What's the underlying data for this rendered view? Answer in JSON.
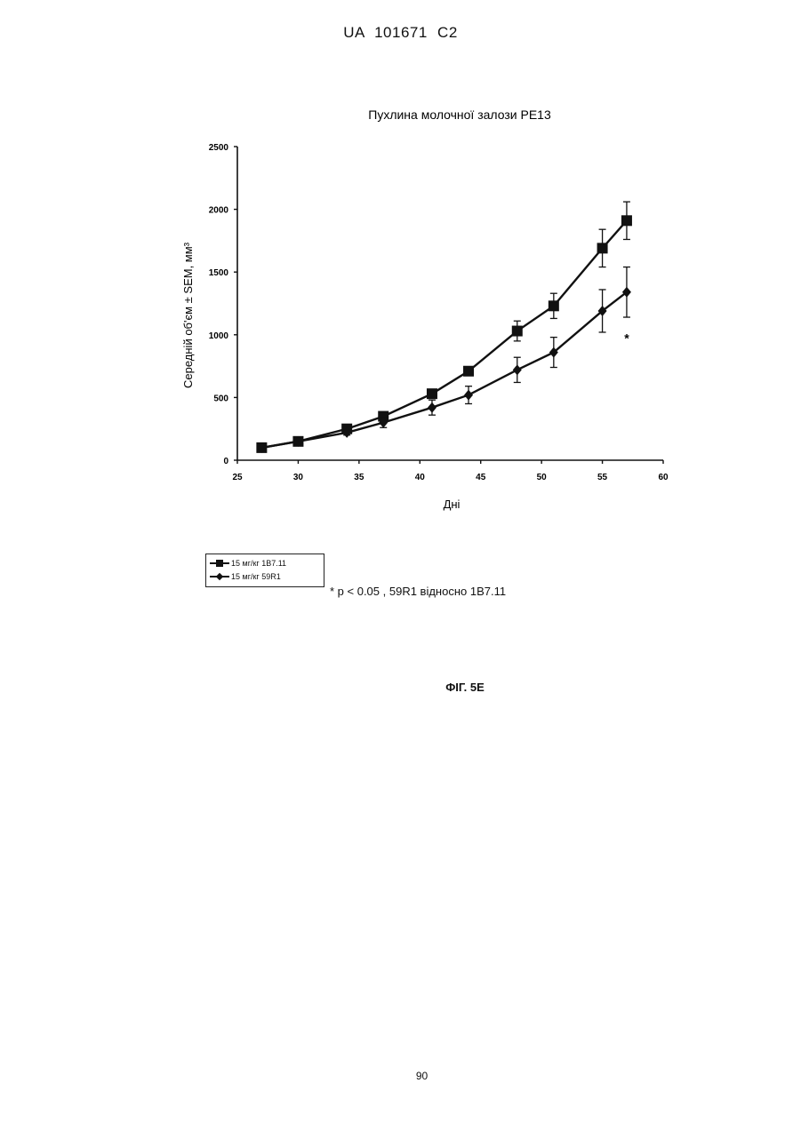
{
  "header": {
    "text": "UA   101671   C2"
  },
  "chart_data": {
    "type": "line",
    "title": "Пухлина молочної залози PE13",
    "xlabel": "Дні",
    "ylabel": "Середній об'єм ± SEM, мм³",
    "xlim": [
      25,
      60
    ],
    "ylim": [
      0,
      2500
    ],
    "xticks": [
      25,
      30,
      35,
      40,
      45,
      50,
      55,
      60
    ],
    "yticks": [
      0,
      500,
      1000,
      1500,
      2000,
      2500
    ],
    "ytick_labels": [
      "0",
      "500",
      "1000",
      "1500",
      "2000",
      "2500"
    ],
    "grid": false,
    "legend_position": "bottom-left, below chart",
    "series": [
      {
        "name": "15 мг/кг 1B7.11",
        "marker": "square",
        "x": [
          27,
          30,
          34,
          37,
          41,
          44,
          48,
          51,
          55,
          57
        ],
        "y": [
          100,
          150,
          250,
          350,
          530,
          710,
          1030,
          1230,
          1690,
          1910
        ],
        "error": [
          0,
          0,
          0,
          0,
          0,
          30,
          80,
          100,
          150,
          150
        ]
      },
      {
        "name": "15 мг/кг 59R1",
        "marker": "diamond",
        "x": [
          27,
          30,
          34,
          37,
          41,
          44,
          48,
          51,
          55,
          57
        ],
        "y": [
          100,
          150,
          220,
          300,
          420,
          520,
          720,
          860,
          1190,
          1340
        ],
        "error": [
          0,
          0,
          20,
          40,
          60,
          70,
          100,
          120,
          170,
          200
        ]
      }
    ],
    "annotations": [
      {
        "text": "*",
        "x": 57,
        "y": 980
      }
    ]
  },
  "footnote": {
    "text": "*  p <  0.05 , 59R1 відносно 1B7.11"
  },
  "figure": {
    "label": "ФІГ. 5E"
  },
  "page_number": "90"
}
